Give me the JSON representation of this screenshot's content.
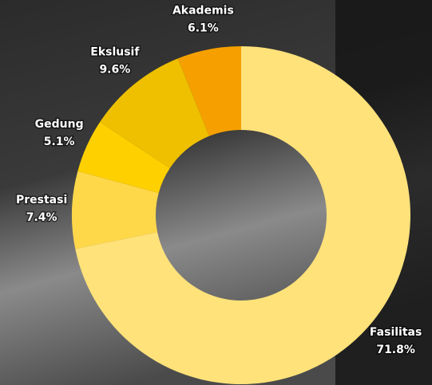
{
  "chart_data": {
    "type": "donut",
    "categories": [
      "Fasilitas",
      "Prestasi",
      "Gedung",
      "Ekslusif",
      "Akademis"
    ],
    "values": [
      71.8,
      7.4,
      5.1,
      9.6,
      6.1
    ],
    "value_labels": [
      "71.8%",
      "7.4%",
      "5.1%",
      "9.6%",
      "6.1%"
    ],
    "colors": [
      "#ffe27a",
      "#ffd84a",
      "#ffd000",
      "#eec000",
      "#f5a000"
    ]
  }
}
